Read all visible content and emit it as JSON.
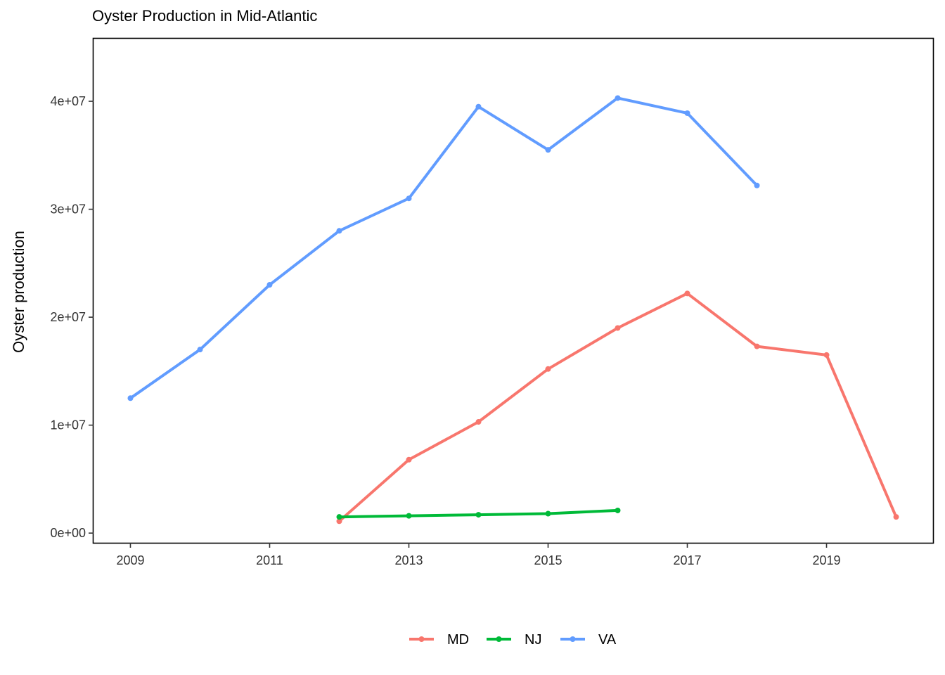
{
  "chart_data": {
    "type": "line",
    "title": "Oyster Production in Mid-Atlantic",
    "xlabel": "",
    "ylabel": "Oyster production",
    "xlim": [
      2008.47,
      2020.53
    ],
    "ylim": [
      -900000,
      45800000
    ],
    "x_ticks": [
      2009,
      2011,
      2013,
      2015,
      2017,
      2019
    ],
    "x_tick_labels": [
      "2009",
      "2011",
      "2013",
      "2015",
      "2017",
      "2019"
    ],
    "y_ticks": [
      0,
      10000000,
      20000000,
      30000000,
      40000000
    ],
    "y_tick_labels": [
      "0e+00",
      "1e+07",
      "2e+07",
      "3e+07",
      "4e+07"
    ],
    "grid": false,
    "legend_position": "bottom",
    "series": [
      {
        "name": "MD",
        "color": "#F8766D",
        "x": [
          2012,
          2013,
          2014,
          2015,
          2016,
          2017,
          2018,
          2019,
          2020
        ],
        "values": [
          1100000,
          6800000,
          10300000,
          15200000,
          19000000,
          22200000,
          17300000,
          16500000,
          1500000
        ]
      },
      {
        "name": "NJ",
        "color": "#00BA38",
        "x": [
          2012,
          2013,
          2014,
          2015,
          2016
        ],
        "values": [
          1500000,
          1600000,
          1700000,
          1800000,
          2100000
        ]
      },
      {
        "name": "VA",
        "color": "#619CFF",
        "x": [
          2009,
          2010,
          2011,
          2012,
          2013,
          2014,
          2015,
          2016,
          2017,
          2018
        ],
        "values": [
          12500000,
          17000000,
          23000000,
          28000000,
          31000000,
          39500000,
          35500000,
          40300000,
          38900000,
          32200000
        ]
      }
    ]
  }
}
